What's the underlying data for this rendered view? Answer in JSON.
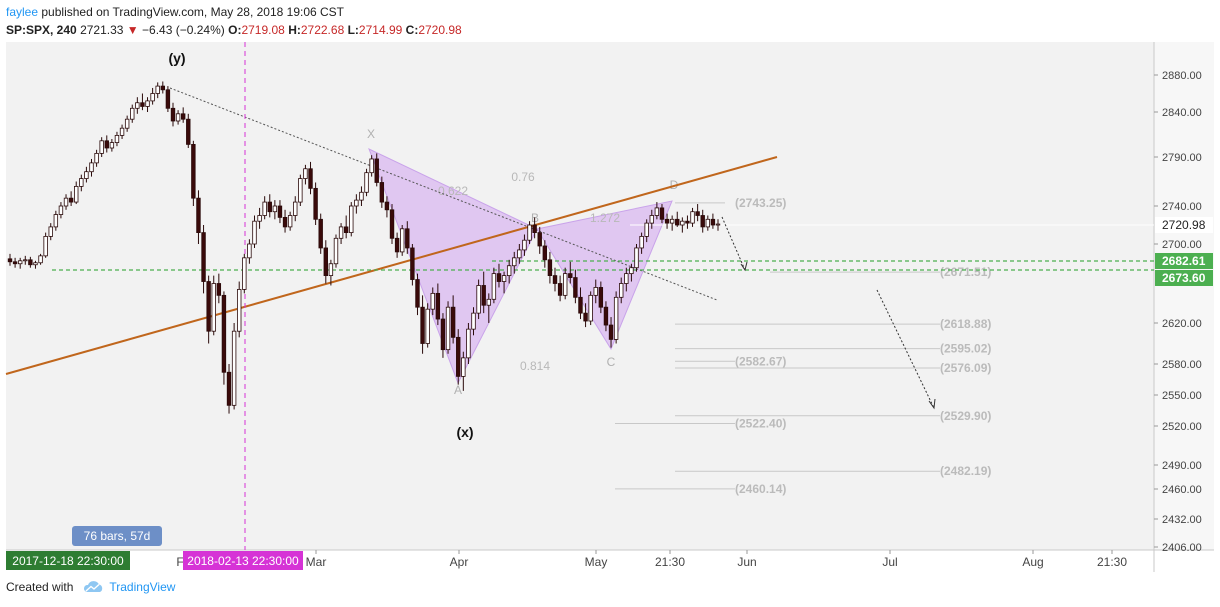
{
  "header": {
    "user": "faylee",
    "published": "published on TradingView.com, May 28, 2018 19:06 CST"
  },
  "ticker": {
    "symbol": "SP:SPX, 240",
    "last": "2721.33",
    "change": "−6.43 (−0.24%)",
    "o_label": "O:",
    "o": "2719.08",
    "h_label": "H:",
    "h": "2722.68",
    "l_label": "L:",
    "l": "2714.99",
    "c_label": "C:",
    "c": "2720.98"
  },
  "footer": {
    "created": "Created with",
    "brand": "TradingView",
    "brand_icon": "cloud-icon"
  },
  "colors": {
    "up": "#ffffff",
    "down": "#3a0a0a",
    "trendline": "#c0661c",
    "pattern": "#d9b8f0",
    "green_dash": "#4caf50",
    "magenta": "#d633d6",
    "price_label": "#4caf50"
  },
  "chart_data": {
    "type": "candlestick",
    "symbol": "SP:SPX",
    "interval": "240",
    "y_ticks": [
      2880,
      2840,
      2790,
      2740,
      2700,
      2620,
      2580,
      2550,
      2520,
      2490,
      2460,
      2432,
      2406
    ],
    "x_ticks": [
      "Mar",
      "Apr",
      "May",
      "21:30",
      "Jun",
      "Jul",
      "Aug",
      "21:30"
    ],
    "price_labels": [
      {
        "text": "2720.98",
        "value": 2720.98,
        "style": "plain"
      },
      {
        "text": "2682.61",
        "value": 2682.61,
        "style": "green"
      },
      {
        "text": "2673.60",
        "value": 2673.6,
        "style": "green"
      }
    ],
    "x_badges": [
      {
        "text": "2017-12-18 22:30:00",
        "color": "#2e7d32"
      },
      {
        "text": "2018-02-13 22:30:00",
        "color": "#d633d6"
      }
    ],
    "f_partial": "F",
    "range_note": "76 bars, 57d",
    "wave_labels": [
      "(y)",
      "(x)"
    ],
    "pattern_points": [
      "X",
      "A",
      "B",
      "C",
      "D"
    ],
    "ratios": [
      "0.622",
      "0.76",
      "1.272",
      "0.814"
    ],
    "levels": [
      {
        "text": "(2743.25)",
        "value": 2743.25
      },
      {
        "text": "(2671.51)",
        "value": 2671.51
      },
      {
        "text": "(2618.88)",
        "value": 2618.88
      },
      {
        "text": "(2595.02)",
        "value": 2595.02
      },
      {
        "text": "(2582.67)",
        "value": 2582.67
      },
      {
        "text": "(2576.09)",
        "value": 2576.09
      },
      {
        "text": "(2529.90)",
        "value": 2529.9
      },
      {
        "text": "(2522.40)",
        "value": 2522.4
      },
      {
        "text": "(2482.19)",
        "value": 2482.19
      },
      {
        "text": "(2460.14)",
        "value": 2460.14
      }
    ],
    "ohlc": [
      [
        2685,
        2690,
        2678,
        2682
      ],
      [
        2682,
        2686,
        2676,
        2680
      ],
      [
        2680,
        2686,
        2675,
        2683
      ],
      [
        2683,
        2688,
        2679,
        2684
      ],
      [
        2684,
        2687,
        2676,
        2679
      ],
      [
        2679,
        2683,
        2675,
        2681
      ],
      [
        2681,
        2690,
        2679,
        2688
      ],
      [
        2688,
        2712,
        2686,
        2708
      ],
      [
        2708,
        2722,
        2704,
        2718
      ],
      [
        2718,
        2735,
        2714,
        2731
      ],
      [
        2731,
        2744,
        2727,
        2740
      ],
      [
        2740,
        2752,
        2736,
        2748
      ],
      [
        2748,
        2755,
        2740,
        2744
      ],
      [
        2744,
        2765,
        2742,
        2760
      ],
      [
        2760,
        2772,
        2755,
        2768
      ],
      [
        2768,
        2780,
        2764,
        2775
      ],
      [
        2775,
        2788,
        2770,
        2784
      ],
      [
        2784,
        2798,
        2780,
        2794
      ],
      [
        2794,
        2812,
        2790,
        2808
      ],
      [
        2808,
        2814,
        2795,
        2800
      ],
      [
        2800,
        2810,
        2796,
        2806
      ],
      [
        2806,
        2818,
        2802,
        2814
      ],
      [
        2814,
        2826,
        2810,
        2822
      ],
      [
        2822,
        2836,
        2818,
        2832
      ],
      [
        2832,
        2848,
        2828,
        2844
      ],
      [
        2844,
        2856,
        2838,
        2850
      ],
      [
        2850,
        2860,
        2842,
        2846
      ],
      [
        2846,
        2856,
        2840,
        2852
      ],
      [
        2852,
        2866,
        2848,
        2860
      ],
      [
        2860,
        2872,
        2855,
        2868
      ],
      [
        2868,
        2873,
        2860,
        2864
      ],
      [
        2864,
        2868,
        2840,
        2844
      ],
      [
        2844,
        2850,
        2824,
        2830
      ],
      [
        2830,
        2842,
        2826,
        2838
      ],
      [
        2838,
        2845,
        2828,
        2832
      ],
      [
        2832,
        2838,
        2800,
        2804
      ],
      [
        2804,
        2808,
        2740,
        2748
      ],
      [
        2748,
        2756,
        2700,
        2712
      ],
      [
        2712,
        2720,
        2650,
        2662
      ],
      [
        2662,
        2668,
        2600,
        2612
      ],
      [
        2612,
        2668,
        2608,
        2660
      ],
      [
        2660,
        2670,
        2640,
        2648
      ],
      [
        2648,
        2652,
        2560,
        2572
      ],
      [
        2572,
        2580,
        2532,
        2540
      ],
      [
        2540,
        2620,
        2536,
        2612
      ],
      [
        2612,
        2662,
        2606,
        2654
      ],
      [
        2654,
        2690,
        2650,
        2686
      ],
      [
        2686,
        2705,
        2680,
        2700
      ],
      [
        2700,
        2730,
        2696,
        2724
      ],
      [
        2724,
        2738,
        2716,
        2730
      ],
      [
        2730,
        2750,
        2726,
        2744
      ],
      [
        2744,
        2752,
        2728,
        2734
      ],
      [
        2734,
        2746,
        2726,
        2740
      ],
      [
        2740,
        2746,
        2722,
        2728
      ],
      [
        2728,
        2736,
        2712,
        2718
      ],
      [
        2718,
        2734,
        2714,
        2730
      ],
      [
        2730,
        2750,
        2724,
        2744
      ],
      [
        2744,
        2772,
        2740,
        2768
      ],
      [
        2768,
        2782,
        2762,
        2778
      ],
      [
        2778,
        2785,
        2752,
        2758
      ],
      [
        2758,
        2764,
        2720,
        2726
      ],
      [
        2726,
        2732,
        2690,
        2696
      ],
      [
        2696,
        2704,
        2660,
        2668
      ],
      [
        2668,
        2684,
        2658,
        2680
      ],
      [
        2680,
        2710,
        2676,
        2706
      ],
      [
        2706,
        2722,
        2700,
        2718
      ],
      [
        2718,
        2730,
        2706,
        2712
      ],
      [
        2712,
        2744,
        2708,
        2740
      ],
      [
        2740,
        2752,
        2732,
        2746
      ],
      [
        2746,
        2760,
        2740,
        2754
      ],
      [
        2754,
        2778,
        2750,
        2774
      ],
      [
        2774,
        2792,
        2770,
        2788
      ],
      [
        2788,
        2794,
        2760,
        2764
      ],
      [
        2764,
        2770,
        2738,
        2744
      ],
      [
        2744,
        2750,
        2728,
        2736
      ],
      [
        2736,
        2742,
        2700,
        2706
      ],
      [
        2706,
        2712,
        2686,
        2692
      ],
      [
        2692,
        2720,
        2688,
        2716
      ],
      [
        2716,
        2724,
        2690,
        2696
      ],
      [
        2696,
        2700,
        2658,
        2664
      ],
      [
        2664,
        2670,
        2628,
        2636
      ],
      [
        2636,
        2648,
        2590,
        2600
      ],
      [
        2600,
        2640,
        2596,
        2634
      ],
      [
        2634,
        2656,
        2628,
        2650
      ],
      [
        2650,
        2660,
        2618,
        2624
      ],
      [
        2624,
        2630,
        2586,
        2594
      ],
      [
        2594,
        2642,
        2590,
        2636
      ],
      [
        2636,
        2648,
        2600,
        2606
      ],
      [
        2606,
        2614,
        2560,
        2568
      ],
      [
        2568,
        2592,
        2554,
        2586
      ],
      [
        2586,
        2620,
        2580,
        2614
      ],
      [
        2614,
        2636,
        2608,
        2630
      ],
      [
        2630,
        2664,
        2624,
        2658
      ],
      [
        2658,
        2672,
        2630,
        2638
      ],
      [
        2638,
        2650,
        2620,
        2644
      ],
      [
        2644,
        2676,
        2640,
        2670
      ],
      [
        2670,
        2680,
        2656,
        2662
      ],
      [
        2662,
        2672,
        2650,
        2668
      ],
      [
        2668,
        2684,
        2660,
        2678
      ],
      [
        2678,
        2692,
        2670,
        2686
      ],
      [
        2686,
        2700,
        2680,
        2694
      ],
      [
        2694,
        2710,
        2688,
        2704
      ],
      [
        2704,
        2724,
        2700,
        2720
      ],
      [
        2720,
        2728,
        2706,
        2712
      ],
      [
        2712,
        2718,
        2690,
        2698
      ],
      [
        2698,
        2704,
        2676,
        2684
      ],
      [
        2684,
        2692,
        2660,
        2668
      ],
      [
        2668,
        2676,
        2652,
        2660
      ],
      [
        2660,
        2668,
        2642,
        2648
      ],
      [
        2648,
        2676,
        2644,
        2670
      ],
      [
        2670,
        2682,
        2660,
        2666
      ],
      [
        2666,
        2674,
        2640,
        2646
      ],
      [
        2646,
        2656,
        2624,
        2630
      ],
      [
        2630,
        2640,
        2616,
        2622
      ],
      [
        2622,
        2652,
        2618,
        2648
      ],
      [
        2648,
        2664,
        2640,
        2656
      ],
      [
        2656,
        2662,
        2630,
        2636
      ],
      [
        2636,
        2642,
        2612,
        2618
      ],
      [
        2618,
        2626,
        2596,
        2604
      ],
      [
        2604,
        2652,
        2600,
        2646
      ],
      [
        2646,
        2666,
        2640,
        2660
      ],
      [
        2660,
        2676,
        2652,
        2670
      ],
      [
        2670,
        2680,
        2662,
        2676
      ],
      [
        2676,
        2700,
        2672,
        2696
      ],
      [
        2696,
        2712,
        2690,
        2708
      ],
      [
        2708,
        2726,
        2702,
        2722
      ],
      [
        2722,
        2736,
        2716,
        2730
      ],
      [
        2730,
        2744,
        2726,
        2738
      ],
      [
        2738,
        2742,
        2722,
        2726
      ],
      [
        2726,
        2732,
        2716,
        2722
      ],
      [
        2722,
        2730,
        2714,
        2726
      ],
      [
        2726,
        2734,
        2718,
        2720
      ],
      [
        2720,
        2728,
        2712,
        2724
      ],
      [
        2724,
        2730,
        2716,
        2722
      ],
      [
        2722,
        2738,
        2718,
        2734
      ],
      [
        2734,
        2742,
        2724,
        2730
      ],
      [
        2730,
        2736,
        2712,
        2718
      ],
      [
        2718,
        2730,
        2714,
        2726
      ],
      [
        2726,
        2732,
        2716,
        2720
      ],
      [
        2720,
        2726,
        2714,
        2721
      ]
    ]
  }
}
